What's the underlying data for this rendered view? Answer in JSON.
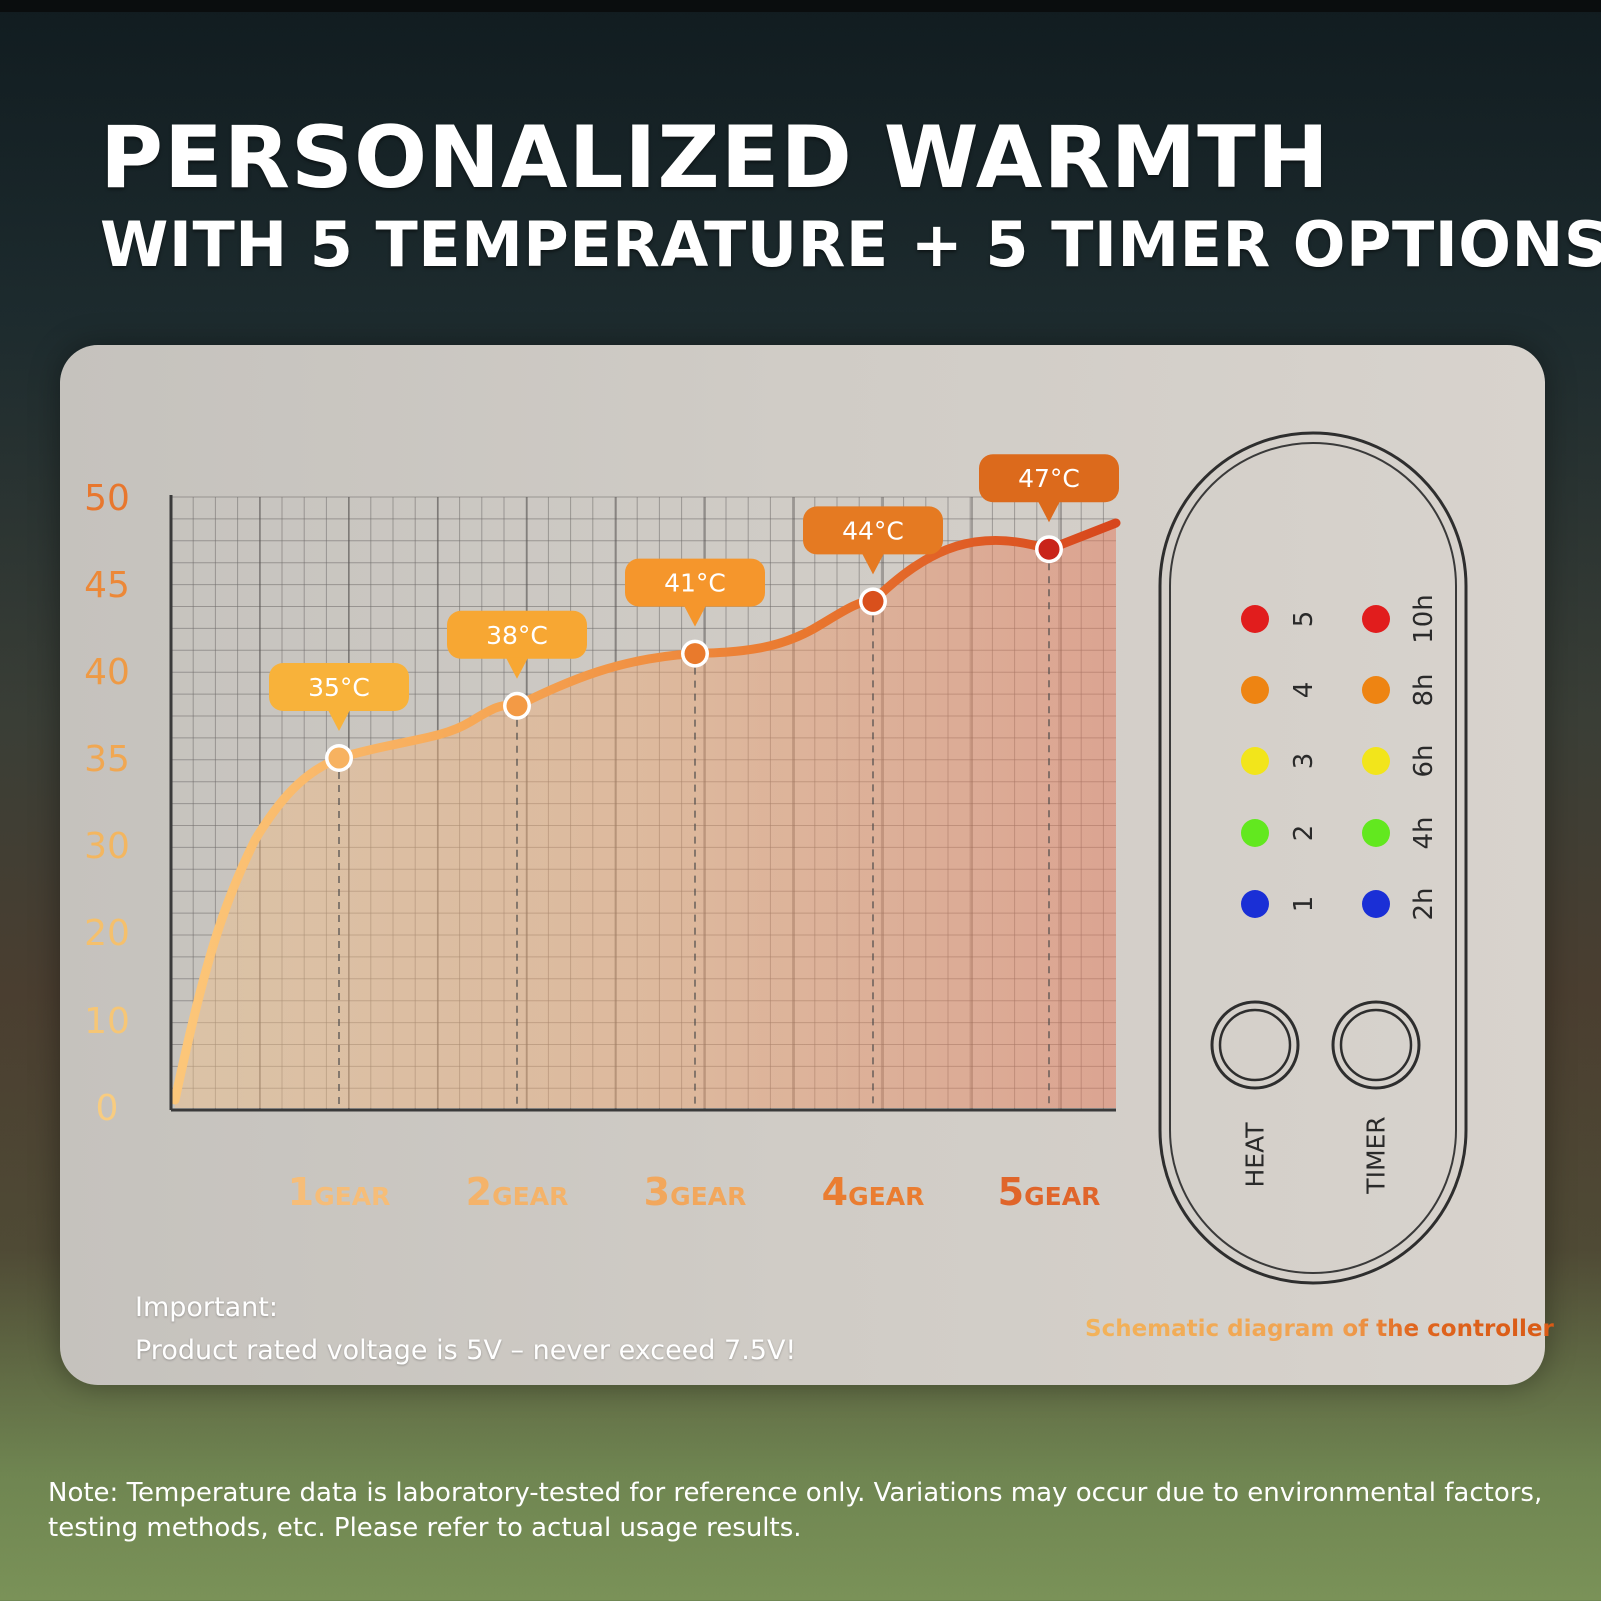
{
  "title": {
    "line1": "PERSONALIZED WARMTH",
    "line2": "WITH 5 TEMPERATURE + 5 TIMER OPTIONS"
  },
  "chart_data": {
    "type": "line",
    "y_ticks": [
      "50",
      "45",
      "40",
      "35",
      "30",
      "20",
      "10",
      "0"
    ],
    "gear_labels": [
      {
        "num": "1",
        "word": "GEAR"
      },
      {
        "num": "2",
        "word": "GEAR"
      },
      {
        "num": "3",
        "word": "GEAR"
      },
      {
        "num": "4",
        "word": "GEAR"
      },
      {
        "num": "5",
        "word": "GEAR"
      }
    ],
    "points": [
      {
        "gear": 1,
        "value": 35,
        "label": "35°C"
      },
      {
        "gear": 2,
        "value": 38,
        "label": "38°C"
      },
      {
        "gear": 3,
        "value": 41,
        "label": "41°C"
      },
      {
        "gear": 4,
        "value": 44,
        "label": "44°C"
      },
      {
        "gear": 5,
        "value": 47,
        "label": "47°C"
      }
    ],
    "grid": true,
    "colors": [
      "#f7b260",
      "#f39a45",
      "#e97a2c",
      "#d9501c",
      "#c9241a"
    ]
  },
  "controller": {
    "caption_part1": "Schematic diagram",
    "caption_part2": "of the controller",
    "heat_levels": [
      "1",
      "2",
      "3",
      "4",
      "5"
    ],
    "timer_levels": [
      "2h",
      "4h",
      "6h",
      "8h",
      "10h"
    ],
    "led_colors": [
      "#1a2fd6",
      "#62e81f",
      "#f2e51b",
      "#ee8412",
      "#e11d1d"
    ],
    "heat_button": "HEAT",
    "timer_button": "TIMER"
  },
  "important": {
    "label": "Important:",
    "text": "Product rated voltage is 5V – never exceed 7.5V!"
  },
  "note": "Note: Temperature data is laboratory-tested for reference only. Variations may occur due to environmental factors, testing methods, etc. Please refer to actual usage results."
}
